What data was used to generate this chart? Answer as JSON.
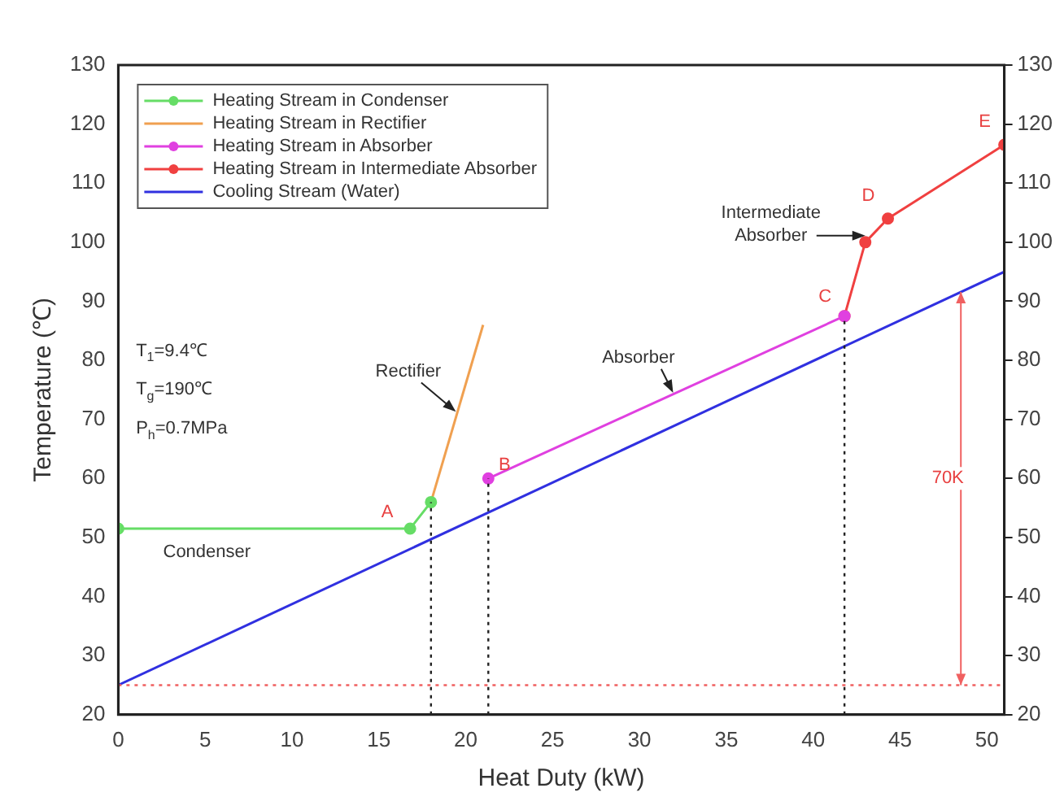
{
  "chart_data": {
    "type": "line",
    "xlabel": "Heat Duty (kW)",
    "ylabel": "Temperature (℃)",
    "xlim": [
      0,
      51
    ],
    "xticks": [
      0,
      5,
      10,
      15,
      20,
      25,
      30,
      35,
      40,
      45,
      50
    ],
    "ylim": [
      20,
      130
    ],
    "yticks": [
      20,
      30,
      40,
      50,
      60,
      70,
      80,
      90,
      100,
      110,
      120,
      130
    ],
    "y2lim": [
      20,
      130
    ],
    "y2ticks": [
      20,
      30,
      40,
      50,
      60,
      70,
      80,
      90,
      100,
      110,
      120,
      130
    ],
    "legend": "top left",
    "grid": false,
    "line_style": "solid",
    "series": [
      {
        "name": "Heating Stream in Condenser",
        "color": "#66dd66",
        "marker": "circle",
        "x": [
          0,
          16.8,
          18
        ],
        "values": [
          51.5,
          51.5,
          56
        ]
      },
      {
        "name": "Heating Stream in Rectifier",
        "color": "#f0a050",
        "x": [
          18,
          21
        ],
        "values": [
          56,
          86
        ]
      },
      {
        "name": "Heating Stream in Absorber",
        "color": "#e040e0",
        "marker": "circle",
        "x": [
          21.3,
          41.8
        ],
        "values": [
          60,
          87.5
        ]
      },
      {
        "name": "Heating Stream in Intermediate Absorber",
        "color": "#f04040",
        "marker": "circle",
        "x": [
          41.8,
          43,
          44.3,
          51
        ],
        "values": [
          87.5,
          100,
          104,
          116.5
        ]
      },
      {
        "name": "Cooling Stream (Water)",
        "color": "#3030e0",
        "x": [
          0,
          51
        ],
        "values": [
          25,
          95
        ]
      }
    ],
    "ref_lines": [
      {
        "axis": "y",
        "value": 25,
        "color": "#f06060",
        "line_style": "dotted"
      },
      {
        "axis": "x",
        "value": 18,
        "color": "#222222",
        "line_style": "dotted"
      },
      {
        "axis": "x",
        "value": 21.3,
        "color": "#222222",
        "line_style": "dotted"
      },
      {
        "axis": "x",
        "value": 41.8,
        "color": "#222222",
        "line_style": "dotted"
      }
    ],
    "annotations": [
      {
        "text": "A",
        "x": 16.8,
        "y": 51.5
      },
      {
        "text": "B",
        "x": 21.3,
        "y": 60
      },
      {
        "text": "C",
        "x": 41.8,
        "y": 87.5
      },
      {
        "text": "D",
        "x": 44.3,
        "y": 104
      },
      {
        "text": "E",
        "x": 51,
        "y": 116.5
      },
      "Condenser",
      {
        "text": "Rectifier",
        "x": 19.5,
        "y": 71
      },
      {
        "text": "Absorber",
        "x": 32,
        "y": 74.4
      },
      {
        "text": "Intermediate Absorber",
        "x": 43,
        "y": 100
      },
      {
        "text": "70K",
        "x": 48.5,
        "y": 60
      },
      "T$_{1}$=9.4℃",
      "T$_{g}$=190℃",
      "P$_{h}$=0.7MPa"
    ]
  }
}
